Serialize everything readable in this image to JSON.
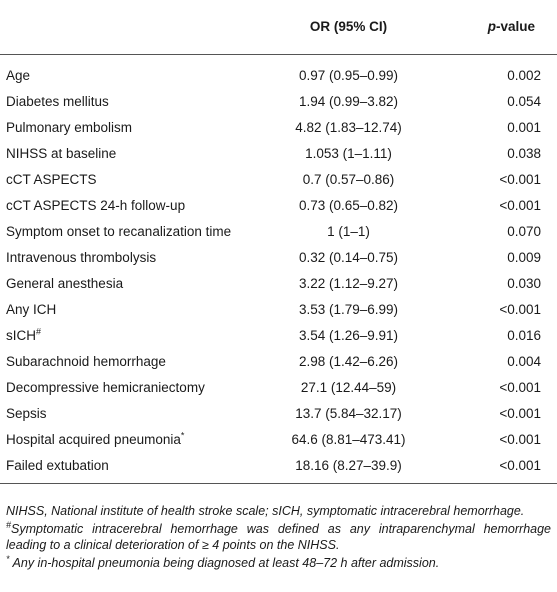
{
  "header": {
    "variable": "",
    "or": "OR (95% CI)",
    "p_italic": "p",
    "p_rest": "-value"
  },
  "rows": [
    {
      "v": "Age",
      "or": "0.97 (0.95–0.99)",
      "p": "0.002"
    },
    {
      "v": "Diabetes mellitus",
      "or": "1.94 (0.99–3.82)",
      "p": "0.054"
    },
    {
      "v": "Pulmonary embolism",
      "or": "4.82 (1.83–12.74)",
      "p": "0.001"
    },
    {
      "v": "NIHSS at baseline",
      "or": "1.053 (1–1.11)",
      "p": "0.038"
    },
    {
      "v": "cCT ASPECTS",
      "or": "0.7 (0.57–0.86)",
      "p": "<0.001"
    },
    {
      "v": "cCT ASPECTS 24-h follow-up",
      "or": "0.73 (0.65–0.82)",
      "p": "<0.001"
    },
    {
      "v": "Symptom onset to recanalization time",
      "or": "1 (1–1)",
      "p": "0.070"
    },
    {
      "v": "Intravenous thrombolysis",
      "or": "0.32 (0.14–0.75)",
      "p": "0.009"
    },
    {
      "v": "General anesthesia",
      "or": "3.22 (1.12–9.27)",
      "p": "0.030"
    },
    {
      "v": "Any ICH",
      "or": "3.53 (1.79–6.99)",
      "p": "<0.001"
    },
    {
      "v": "sICH",
      "sup": "#",
      "or": "3.54 (1.26–9.91)",
      "p": "0.016"
    },
    {
      "v": "Subarachnoid hemorrhage",
      "or": "2.98 (1.42–6.26)",
      "p": "0.004"
    },
    {
      "v": "Decompressive hemicraniectomy",
      "or": "27.1 (12.44–59)",
      "p": "<0.001"
    },
    {
      "v": "Sepsis",
      "or": "13.7 (5.84–32.17)",
      "p": "<0.001"
    },
    {
      "v": "Hospital acquired pneumonia",
      "sup": "*",
      "or": "64.6 (8.81–473.41)",
      "p": "<0.001"
    },
    {
      "v": "Failed extubation",
      "or": "18.16 (8.27–39.9)",
      "p": "<0.001"
    }
  ],
  "footnotes": {
    "abbrev": "NIHSS, National institute of health stroke scale; sICH, symptomatic intracerebral hemorrhage.",
    "hash_mark": "#",
    "hash_text": "Symptomatic intracerebral hemorrhage was defined as any intraparenchymal hemorrhage leading to a clinical deterioration of ≥ 4 points on the NIHSS.",
    "star_mark": "*",
    "star_text": " Any in-hospital pneumonia being diagnosed at least 48–72 h after admission."
  }
}
